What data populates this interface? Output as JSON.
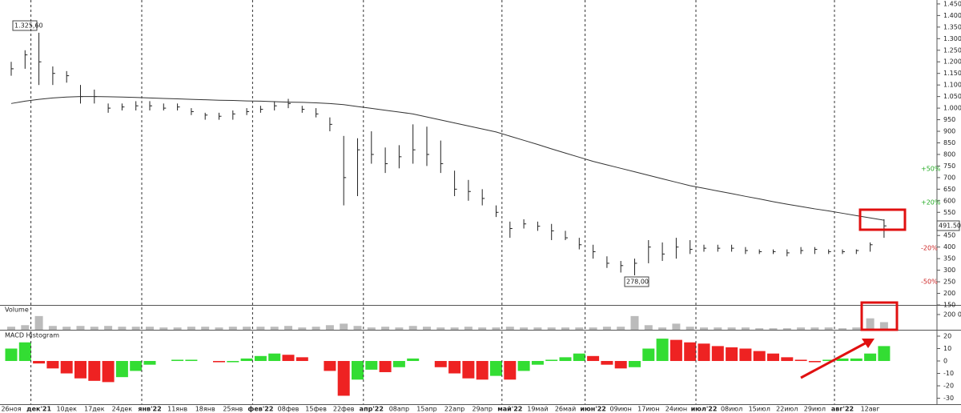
{
  "chart_data": [
    {
      "type": "ohlc",
      "high": [
        1200,
        1250,
        1325.6,
        1180,
        1160,
        1100,
        1080,
        1020,
        1020,
        1030,
        1030,
        1020,
        1020,
        1000,
        980,
        980,
        990,
        1000,
        1010,
        1030,
        1040,
        1010,
        1000,
        960,
        880,
        870,
        900,
        830,
        840,
        930,
        920,
        860,
        730,
        690,
        650,
        580,
        510,
        520,
        510,
        500,
        470,
        440,
        410,
        360,
        340,
        350,
        430,
        420,
        440,
        430,
        410,
        410,
        410,
        400,
        390,
        390,
        390,
        400,
        400,
        390,
        390,
        390,
        420,
        520
      ],
      "low": [
        1140,
        1170,
        1100,
        1100,
        1110,
        1020,
        1020,
        980,
        990,
        990,
        990,
        990,
        990,
        970,
        950,
        950,
        950,
        970,
        980,
        990,
        1000,
        980,
        960,
        900,
        580,
        620,
        760,
        720,
        740,
        760,
        750,
        720,
        620,
        600,
        580,
        530,
        440,
        480,
        470,
        430,
        430,
        390,
        350,
        310,
        290,
        278,
        330,
        340,
        350,
        370,
        380,
        380,
        380,
        370,
        370,
        370,
        360,
        370,
        370,
        370,
        370,
        370,
        380,
        440
      ],
      "close": [
        1170,
        1230,
        1200,
        1150,
        1140,
        1050,
        1050,
        1000,
        1005,
        1010,
        1010,
        1000,
        1005,
        985,
        970,
        965,
        975,
        985,
        995,
        1010,
        1020,
        995,
        975,
        930,
        700,
        820,
        800,
        760,
        790,
        820,
        800,
        760,
        650,
        640,
        610,
        550,
        480,
        500,
        490,
        470,
        440,
        410,
        380,
        330,
        320,
        330,
        400,
        370,
        400,
        390,
        395,
        395,
        395,
        385,
        380,
        380,
        375,
        385,
        390,
        380,
        380,
        385,
        410,
        491.5
      ],
      "color": "#222222",
      "moving_average": {
        "color": "#333333",
        "values": [
          1020,
          1030,
          1038,
          1044,
          1048,
          1050,
          1050,
          1049,
          1048,
          1046,
          1044,
          1042,
          1040,
          1038,
          1036,
          1034,
          1033,
          1031,
          1030,
          1028,
          1026,
          1025,
          1023,
          1020,
          1015,
          1007,
          999,
          991,
          983,
          975,
          962,
          949,
          936,
          923,
          910,
          897,
          879,
          861,
          843,
          824,
          806,
          788,
          770,
          755,
          740,
          725,
          710,
          695,
          680,
          665,
          654,
          642,
          631,
          619,
          608,
          596,
          585,
          575,
          565,
          556,
          546,
          536,
          526,
          516
        ]
      },
      "ylim": [
        150,
        1467
      ],
      "yticks": [
        {
          "value": 1450,
          "label": "1.450"
        },
        {
          "value": 1400,
          "label": "1.400"
        },
        {
          "value": 1350,
          "label": "1.350"
        },
        {
          "value": 1300,
          "label": "1.300"
        },
        {
          "value": 1250,
          "label": "1.250"
        },
        {
          "value": 1200,
          "label": "1.200"
        },
        {
          "value": 1150,
          "label": "1.150"
        },
        {
          "value": 1100,
          "label": "1.100"
        },
        {
          "value": 1050,
          "label": "1.050"
        },
        {
          "value": 1000,
          "label": "1.000"
        },
        950,
        900,
        850,
        800,
        750,
        700,
        650,
        600,
        550,
        500,
        450,
        400,
        350,
        300,
        250,
        200,
        150
      ],
      "annotations": [
        "1.325,60",
        "278,00",
        "491.50",
        "+50%",
        "+20%",
        "-20%",
        "-50%"
      ]
    },
    {
      "type": "bar",
      "title": "Volume",
      "color": "#bbbbbb",
      "values": [
        40000,
        60000,
        180000,
        50000,
        40000,
        50000,
        40000,
        50000,
        40000,
        40000,
        40000,
        30000,
        30000,
        40000,
        40000,
        30000,
        40000,
        40000,
        40000,
        40000,
        50000,
        30000,
        40000,
        60000,
        80000,
        50000,
        30000,
        40000,
        30000,
        50000,
        40000,
        30000,
        30000,
        40000,
        30000,
        30000,
        40000,
        30000,
        30000,
        30000,
        30000,
        30000,
        30000,
        40000,
        40000,
        180000,
        60000,
        30000,
        80000,
        40000,
        30000,
        30000,
        30000,
        30000,
        20000,
        20000,
        20000,
        30000,
        30000,
        30000,
        20000,
        30000,
        150000,
        100000
      ],
      "ylim": [
        0,
        315000
      ],
      "yticks": [
        {
          "value": 200000,
          "label": "200 000"
        }
      ]
    },
    {
      "type": "macd",
      "title": "MACD Histogram",
      "up_color": "#33dd33",
      "down_color": "#ee2222",
      "categories": [
        "26ноя",
        null,
        "дек'21",
        null,
        "10дек",
        null,
        "17дек",
        null,
        "24дек",
        null,
        "янв'22",
        null,
        "11янв",
        null,
        "18янв",
        null,
        "25янв",
        null,
        "фев'22",
        null,
        "08фев",
        null,
        "15фев",
        null,
        "22фев",
        null,
        "апр'22",
        null,
        "08апр",
        null,
        "15апр",
        null,
        "22апр",
        null,
        "29апр",
        null,
        "май'22",
        null,
        "19май",
        null,
        "26май",
        null,
        "июн'22",
        null,
        "09июн",
        null,
        "17июн",
        null,
        "24июн",
        null,
        "июл'22",
        null,
        "08июл",
        null,
        "15июл",
        null,
        "22июл",
        null,
        "29июл",
        null,
        "авг'22",
        null,
        "12авг",
        null
      ],
      "values": [
        10,
        15,
        -2,
        -6,
        -10,
        -14,
        -16,
        -17,
        -13,
        -8,
        -3,
        0,
        1,
        1,
        0,
        -1,
        -1,
        2,
        4,
        6,
        5,
        3,
        0,
        -8,
        -28,
        -15,
        -7,
        -9,
        -5,
        2,
        0,
        -5,
        -10,
        -14,
        -15,
        -12,
        -15,
        -8,
        -3,
        1,
        3,
        6,
        4,
        -3,
        -6,
        -5,
        10,
        18,
        17,
        15,
        14,
        12,
        11,
        10,
        8,
        6,
        3,
        1,
        -1,
        1,
        2,
        2,
        6,
        12
      ],
      "ylim": [
        -34.8,
        24.5
      ],
      "yticks": [
        20,
        10,
        0,
        -10,
        -20,
        -30
      ]
    }
  ]
}
